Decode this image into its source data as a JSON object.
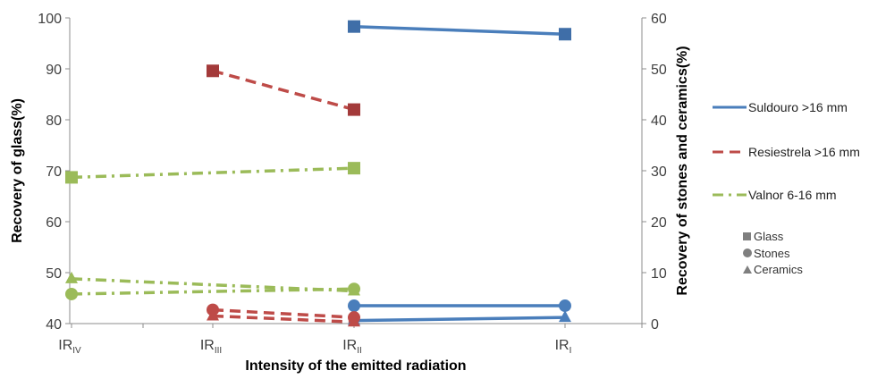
{
  "chart_data": {
    "type": "line",
    "categories": [
      "IR_IV",
      "IR_III",
      "IR_II",
      "IR_I"
    ],
    "category_labels": [
      {
        "base": "IR",
        "sub": "IV"
      },
      {
        "base": "IR",
        "sub": "III"
      },
      {
        "base": "IR",
        "sub": "II"
      },
      {
        "base": "IR",
        "sub": "I"
      }
    ],
    "xlabel": "Intensity of the emitted radiation",
    "ylabel_left": "Recovery of glass(%)",
    "ylabel_right": "Recovery of stones and ceramics(%)",
    "ylim_left": [
      40,
      100
    ],
    "ylim_right": [
      0,
      60
    ],
    "yticks_left": [
      "40",
      "50",
      "60",
      "70",
      "80",
      "90",
      "100"
    ],
    "yticks_right": [
      "0",
      "10",
      "20",
      "30",
      "40",
      "50",
      "60"
    ],
    "grid": false,
    "legend_position": "right",
    "colors": {
      "suldouro": "#4A7EBB",
      "suldouro_marker": "#3F6EA8",
      "resiestrela": "#BE4B48",
      "resiestrela_marker": "#A33A3A",
      "valnor": "#9BBB59",
      "marker_legend": "#7F7F7F"
    },
    "series": [
      {
        "name": "Suldouro >16 mm",
        "style": "solid",
        "color_key": "suldouro",
        "material": "Glass",
        "marker": "square",
        "axis": "left",
        "values": [
          null,
          null,
          98.3,
          96.8
        ]
      },
      {
        "name": "Suldouro >16 mm",
        "style": "solid",
        "color_key": "suldouro",
        "material": "Stones",
        "marker": "circle",
        "axis": "right",
        "values": [
          null,
          null,
          3.5,
          3.5
        ]
      },
      {
        "name": "Suldouro >16 mm",
        "style": "solid",
        "color_key": "suldouro",
        "material": "Ceramics",
        "marker": "triangle",
        "axis": "right",
        "values": [
          null,
          null,
          0.6,
          1.2
        ]
      },
      {
        "name": "Resiestrela >16 mm",
        "style": "dash",
        "color_key": "resiestrela",
        "material": "Glass",
        "marker": "square",
        "axis": "left",
        "values": [
          null,
          89.6,
          82.0,
          null
        ]
      },
      {
        "name": "Resiestrela >16 mm",
        "style": "dash",
        "color_key": "resiestrela",
        "material": "Stones",
        "marker": "circle",
        "axis": "right",
        "values": [
          null,
          2.7,
          1.2,
          null
        ]
      },
      {
        "name": "Resiestrela >16 mm",
        "style": "dash",
        "color_key": "resiestrela",
        "material": "Ceramics",
        "marker": "triangle",
        "axis": "right",
        "values": [
          null,
          1.5,
          0.3,
          null
        ]
      },
      {
        "name": "Valnor 6-16 mm",
        "style": "dashdot",
        "color_key": "valnor",
        "material": "Glass",
        "marker": "square",
        "axis": "left",
        "values": [
          68.7,
          null,
          70.5,
          null
        ]
      },
      {
        "name": "Valnor 6-16 mm",
        "style": "dashdot",
        "color_key": "valnor",
        "material": "Stones",
        "marker": "circle",
        "axis": "right",
        "values": [
          5.8,
          null,
          6.8,
          null
        ]
      },
      {
        "name": "Valnor 6-16 mm",
        "style": "dashdot",
        "color_key": "valnor",
        "material": "Ceramics",
        "marker": "triangle",
        "axis": "right",
        "values": [
          8.8,
          null,
          6.4,
          null
        ]
      }
    ],
    "legend_lines": [
      {
        "label": "Suldouro >16 mm",
        "style": "solid",
        "color_key": "suldouro"
      },
      {
        "label": "Resiestrela >16 mm",
        "style": "dash",
        "color_key": "resiestrela"
      },
      {
        "label": "Valnor 6-16 mm",
        "style": "dashdot",
        "color_key": "valnor"
      }
    ],
    "legend_markers": [
      {
        "label": "Glass",
        "marker": "square"
      },
      {
        "label": "Stones",
        "marker": "circle"
      },
      {
        "label": "Ceramics",
        "marker": "triangle"
      }
    ]
  }
}
